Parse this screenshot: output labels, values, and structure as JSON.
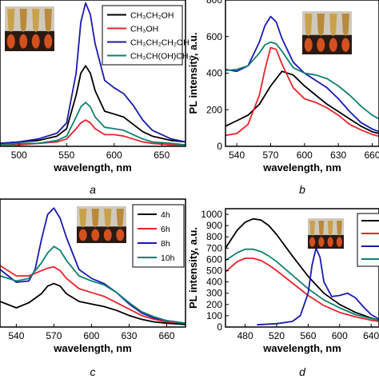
{
  "chart_data": [
    {
      "panel": "a",
      "type": "line",
      "xlabel": "wavelength, nm",
      "ylabel": "",
      "xlim": [
        480,
        675
      ],
      "ylim": [
        0,
        1
      ],
      "xticks": [
        500,
        550,
        600,
        650
      ],
      "yticks": [],
      "legend": "top-right",
      "inset": "top-left",
      "series": [
        {
          "name": "CH₃CH₂OH",
          "color": "#000000",
          "x": [
            480,
            500,
            520,
            540,
            550,
            560,
            565,
            570,
            575,
            580,
            590,
            600,
            610,
            620,
            630,
            640,
            660,
            675
          ],
          "y": [
            0.02,
            0.03,
            0.04,
            0.07,
            0.12,
            0.35,
            0.5,
            0.55,
            0.5,
            0.38,
            0.24,
            0.22,
            0.2,
            0.15,
            0.1,
            0.07,
            0.04,
            0.03
          ]
        },
        {
          "name": "CH₃OH",
          "color": "#e8232a",
          "x": [
            480,
            500,
            520,
            540,
            550,
            560,
            565,
            570,
            575,
            580,
            590,
            600,
            610,
            620,
            630,
            640,
            660,
            675
          ],
          "y": [
            0.01,
            0.01,
            0.02,
            0.03,
            0.05,
            0.12,
            0.16,
            0.18,
            0.16,
            0.12,
            0.08,
            0.08,
            0.07,
            0.05,
            0.03,
            0.02,
            0.01,
            0.01
          ]
        },
        {
          "name": "CH₃CH₂CH₂OH",
          "color": "#1a1ab0",
          "x": [
            480,
            500,
            520,
            540,
            550,
            560,
            565,
            570,
            575,
            580,
            590,
            600,
            610,
            620,
            630,
            640,
            660,
            675
          ],
          "y": [
            0.02,
            0.03,
            0.05,
            0.09,
            0.16,
            0.5,
            0.85,
            0.98,
            0.9,
            0.7,
            0.45,
            0.4,
            0.36,
            0.28,
            0.18,
            0.11,
            0.05,
            0.03
          ]
        },
        {
          "name": "CH₃CH(OH)CH₃",
          "color": "#108070",
          "x": [
            480,
            500,
            520,
            540,
            550,
            560,
            565,
            570,
            575,
            580,
            590,
            600,
            610,
            620,
            630,
            640,
            660,
            675
          ],
          "y": [
            0.01,
            0.02,
            0.02,
            0.04,
            0.07,
            0.2,
            0.27,
            0.3,
            0.27,
            0.2,
            0.13,
            0.12,
            0.11,
            0.08,
            0.05,
            0.03,
            0.02,
            0.01
          ]
        }
      ]
    },
    {
      "panel": "b",
      "type": "line",
      "xlabel": "wavelength, nm",
      "ylabel": "PL intensity, a.u.",
      "xlim": [
        530,
        666
      ],
      "ylim": [
        0,
        800
      ],
      "xticks": [
        540,
        570,
        600,
        630,
        660
      ],
      "yticks": [
        0,
        200,
        400,
        600,
        800
      ],
      "inset": "top-right",
      "series": [
        {
          "name": "",
          "color": "#000000",
          "x": [
            530,
            540,
            550,
            560,
            570,
            580,
            590,
            600,
            610,
            620,
            630,
            640,
            650,
            660,
            666
          ],
          "y": [
            110,
            140,
            170,
            230,
            330,
            410,
            390,
            330,
            280,
            230,
            190,
            150,
            110,
            80,
            70
          ]
        },
        {
          "name": "",
          "color": "#e8232a",
          "x": [
            530,
            540,
            550,
            560,
            565,
            570,
            575,
            580,
            590,
            600,
            610,
            620,
            630,
            640,
            650,
            660,
            666
          ],
          "y": [
            60,
            70,
            120,
            280,
            420,
            540,
            530,
            450,
            320,
            260,
            240,
            210,
            170,
            120,
            90,
            65,
            55
          ]
        },
        {
          "name": "",
          "color": "#1a1ab0",
          "x": [
            530,
            540,
            550,
            560,
            565,
            570,
            575,
            580,
            590,
            600,
            610,
            620,
            630,
            640,
            650,
            660,
            666
          ],
          "y": [
            420,
            410,
            440,
            570,
            660,
            710,
            680,
            590,
            460,
            400,
            360,
            320,
            260,
            190,
            130,
            95,
            80
          ]
        },
        {
          "name": "",
          "color": "#108070",
          "x": [
            530,
            540,
            550,
            560,
            565,
            570,
            575,
            580,
            590,
            600,
            610,
            620,
            630,
            640,
            650,
            660,
            666
          ],
          "y": [
            415,
            420,
            440,
            510,
            555,
            570,
            560,
            520,
            430,
            400,
            390,
            370,
            330,
            280,
            220,
            170,
            150
          ]
        }
      ]
    },
    {
      "panel": "c",
      "type": "line",
      "xlabel": "wavelength, nm",
      "ylabel": "",
      "xlim": [
        527,
        675
      ],
      "ylim": [
        0,
        1
      ],
      "xticks": [
        540,
        570,
        600,
        630,
        660
      ],
      "yticks": [],
      "legend": "top-right",
      "inset": "top-left",
      "series": [
        {
          "name": "4h",
          "color": "#000000",
          "x": [
            527,
            540,
            550,
            560,
            565,
            570,
            575,
            580,
            590,
            600,
            610,
            620,
            630,
            640,
            650,
            660,
            675
          ],
          "y": [
            0.2,
            0.15,
            0.19,
            0.26,
            0.32,
            0.34,
            0.32,
            0.26,
            0.2,
            0.18,
            0.16,
            0.13,
            0.09,
            0.06,
            0.04,
            0.03,
            0.02
          ]
        },
        {
          "name": "6h",
          "color": "#e8232a",
          "x": [
            527,
            540,
            550,
            560,
            565,
            570,
            575,
            580,
            590,
            600,
            610,
            620,
            630,
            640,
            650,
            660,
            675
          ],
          "y": [
            0.48,
            0.4,
            0.4,
            0.44,
            0.46,
            0.47,
            0.44,
            0.38,
            0.3,
            0.27,
            0.24,
            0.19,
            0.14,
            0.09,
            0.06,
            0.04,
            0.03
          ]
        },
        {
          "name": "8h",
          "color": "#1a1ab0",
          "x": [
            527,
            540,
            550,
            555,
            560,
            565,
            570,
            575,
            580,
            590,
            600,
            610,
            620,
            630,
            640,
            650,
            660,
            675
          ],
          "y": [
            0.45,
            0.35,
            0.36,
            0.45,
            0.68,
            0.88,
            0.93,
            0.85,
            0.7,
            0.45,
            0.38,
            0.34,
            0.27,
            0.18,
            0.11,
            0.07,
            0.05,
            0.03
          ]
        },
        {
          "name": "10h",
          "color": "#108070",
          "x": [
            527,
            540,
            550,
            560,
            565,
            570,
            575,
            580,
            590,
            600,
            610,
            620,
            630,
            640,
            650,
            660,
            675
          ],
          "y": [
            0.4,
            0.36,
            0.38,
            0.5,
            0.58,
            0.63,
            0.6,
            0.52,
            0.4,
            0.36,
            0.33,
            0.27,
            0.19,
            0.12,
            0.08,
            0.05,
            0.03
          ]
        }
      ]
    },
    {
      "panel": "d",
      "type": "line",
      "xlabel": "wavelength, nm",
      "ylabel": "PL intensity, a.u.",
      "xlim": [
        455,
        650
      ],
      "ylim": [
        0,
        1050
      ],
      "xticks": [
        480,
        520,
        560,
        600,
        640
      ],
      "yticks": [
        0,
        100,
        200,
        300,
        400,
        500,
        600,
        700,
        800,
        900,
        1000
      ],
      "inset": "top-left",
      "series": [
        {
          "name": "",
          "color": "#000000",
          "x": [
            455,
            470,
            480,
            490,
            500,
            510,
            520,
            540,
            560,
            580,
            600,
            620,
            640,
            650
          ],
          "y": [
            700,
            860,
            930,
            960,
            950,
            900,
            820,
            630,
            450,
            300,
            200,
            130,
            80,
            60
          ]
        },
        {
          "name": "",
          "color": "#e8232a",
          "x": [
            455,
            470,
            480,
            490,
            500,
            510,
            520,
            540,
            560,
            580,
            600,
            620,
            640,
            650
          ],
          "y": [
            490,
            580,
            610,
            610,
            590,
            550,
            500,
            390,
            280,
            190,
            130,
            90,
            60,
            50
          ]
        },
        {
          "name": "",
          "color": "#108070",
          "x": [
            455,
            470,
            480,
            490,
            500,
            510,
            520,
            540,
            560,
            580,
            600,
            620,
            640,
            650
          ],
          "y": [
            590,
            660,
            690,
            690,
            670,
            630,
            580,
            460,
            340,
            240,
            170,
            110,
            75,
            60
          ]
        },
        {
          "name": "",
          "color": "#1a1ab0",
          "x": [
            495,
            520,
            540,
            550,
            560,
            565,
            570,
            575,
            580,
            590,
            600,
            610,
            620,
            630,
            640,
            650
          ],
          "y": [
            20,
            30,
            50,
            100,
            300,
            550,
            700,
            620,
            400,
            270,
            280,
            300,
            260,
            180,
            110,
            70
          ]
        }
      ]
    }
  ],
  "labels": {
    "a": "a",
    "b": "b",
    "c": "c",
    "d": "d"
  },
  "colors": {
    "black": "#000000",
    "red": "#e8232a",
    "blue": "#1a1ab0",
    "teal": "#108070"
  }
}
